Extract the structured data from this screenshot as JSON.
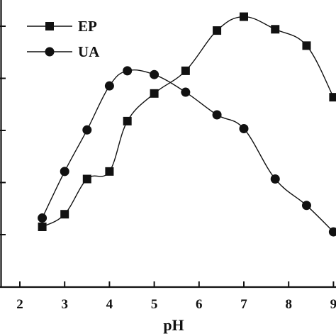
{
  "chart_data": {
    "type": "line",
    "xlabel": "pH",
    "ylabel": "",
    "title": "",
    "xlim": [
      1.55,
      9.0
    ],
    "ylim": [
      0,
      1
    ],
    "x_ticks": [
      "2",
      "3",
      "4",
      "5",
      "6",
      "7",
      "8",
      "9"
    ],
    "y_tick_count": 5,
    "legend_position": "top-left",
    "series": [
      {
        "name": "EP",
        "marker": "square",
        "color": "#111111",
        "x": [
          2.5,
          3.0,
          3.5,
          4.0,
          4.4,
          5.0,
          5.7,
          6.4,
          7.0,
          7.7,
          8.4,
          9.0
        ],
        "y": [
          0.155,
          0.205,
          0.345,
          0.375,
          0.575,
          0.685,
          0.775,
          0.935,
          0.99,
          0.94,
          0.875,
          0.67
        ]
      },
      {
        "name": "UA",
        "marker": "circle",
        "color": "#111111",
        "x": [
          2.5,
          3.0,
          3.5,
          4.0,
          4.4,
          5.0,
          5.7,
          6.4,
          7.0,
          7.7,
          8.4,
          9.0
        ],
        "y": [
          0.19,
          0.375,
          0.54,
          0.715,
          0.775,
          0.76,
          0.69,
          0.6,
          0.545,
          0.345,
          0.24,
          0.135
        ]
      }
    ]
  }
}
